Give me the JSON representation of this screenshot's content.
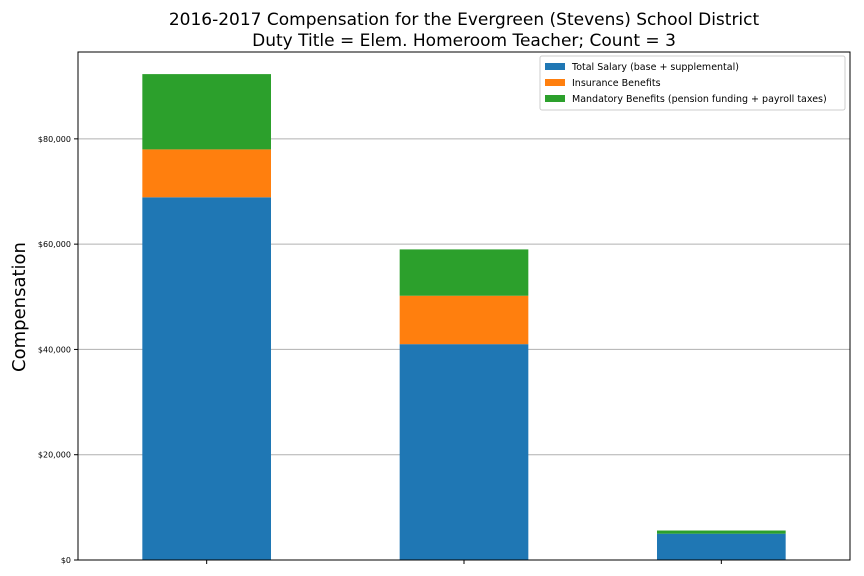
{
  "chart_data": {
    "type": "bar",
    "stacked": true,
    "title": "2016-2017 Compensation for the Evergreen (Stevens) School District",
    "subtitle": "Duty Title = Elem. Homeroom Teacher; Count = 3",
    "xlabel": "",
    "ylabel": "Compensation",
    "categories": [
      "",
      "",
      ""
    ],
    "series": [
      {
        "name": "Total Salary (base + supplemental)",
        "color": "#1f77b4",
        "values": [
          68900,
          41000,
          5000
        ]
      },
      {
        "name": "Insurance Benefits",
        "color": "#ff7f0e",
        "values": [
          9100,
          9200,
          0
        ]
      },
      {
        "name": "Mandatory Benefits (pension funding + payroll taxes)",
        "color": "#2ca02c",
        "values": [
          14300,
          8800,
          600
        ]
      }
    ],
    "ylim": [
      0,
      96500
    ],
    "yticks": [
      0,
      20000,
      40000,
      60000,
      80000
    ],
    "ytick_labels": [
      "$0",
      "$20,000",
      "$40,000",
      "$60,000",
      "$80,000"
    ],
    "grid": "horizontal",
    "legend_position": "top-right"
  }
}
